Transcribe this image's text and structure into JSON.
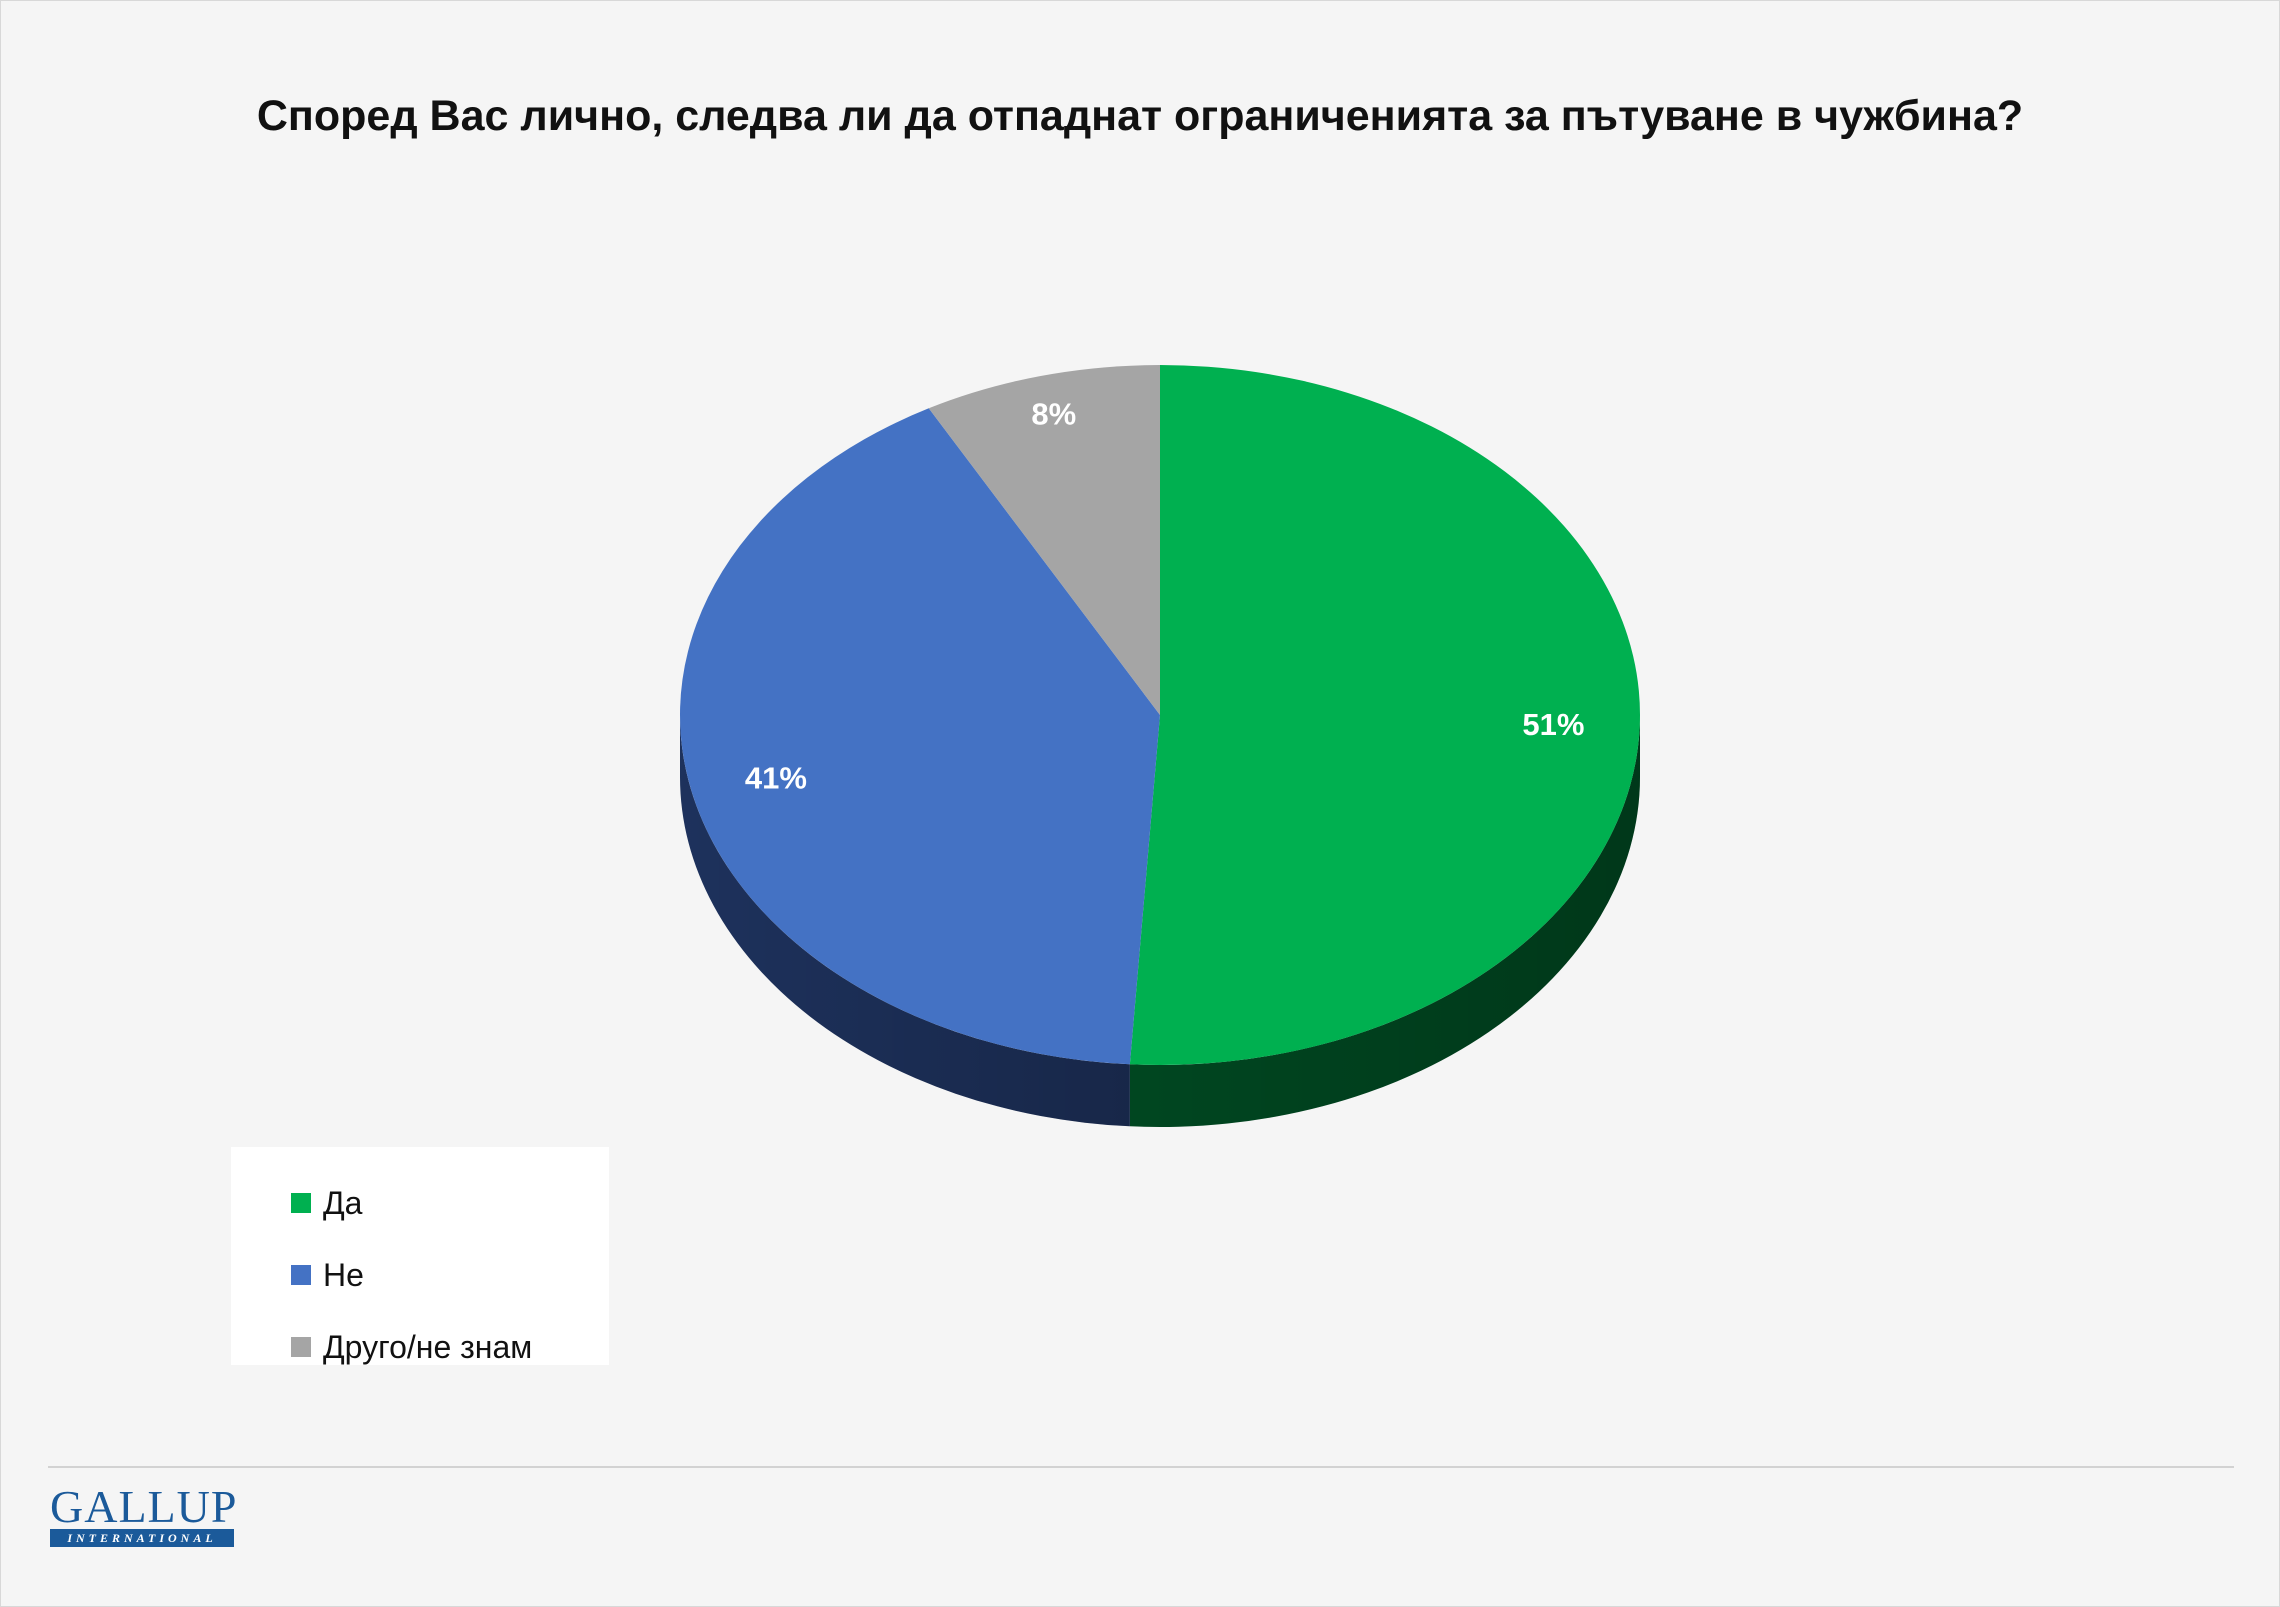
{
  "chart_data": {
    "type": "pie",
    "title": "Според Вас лично, следва ли да отпаднат ограниченията за пътуване в чужбина?",
    "slices": [
      {
        "label": "Да",
        "value": 51,
        "display": "51%",
        "color": "#00b050",
        "side_color": "#004a22"
      },
      {
        "label": "Не",
        "value": 41,
        "display": "41%",
        "color": "#4472c4",
        "side_color": "#1f3461"
      },
      {
        "label": "Друго/не знам",
        "value": 8,
        "display": "8%",
        "color": "#a5a5a5",
        "side_color": "#5e5e5e"
      }
    ],
    "legend_position": "bottom-left",
    "three_d": true
  },
  "branding": {
    "logo_word": "GALLUP",
    "logo_sub": "INTERNATIONAL"
  }
}
